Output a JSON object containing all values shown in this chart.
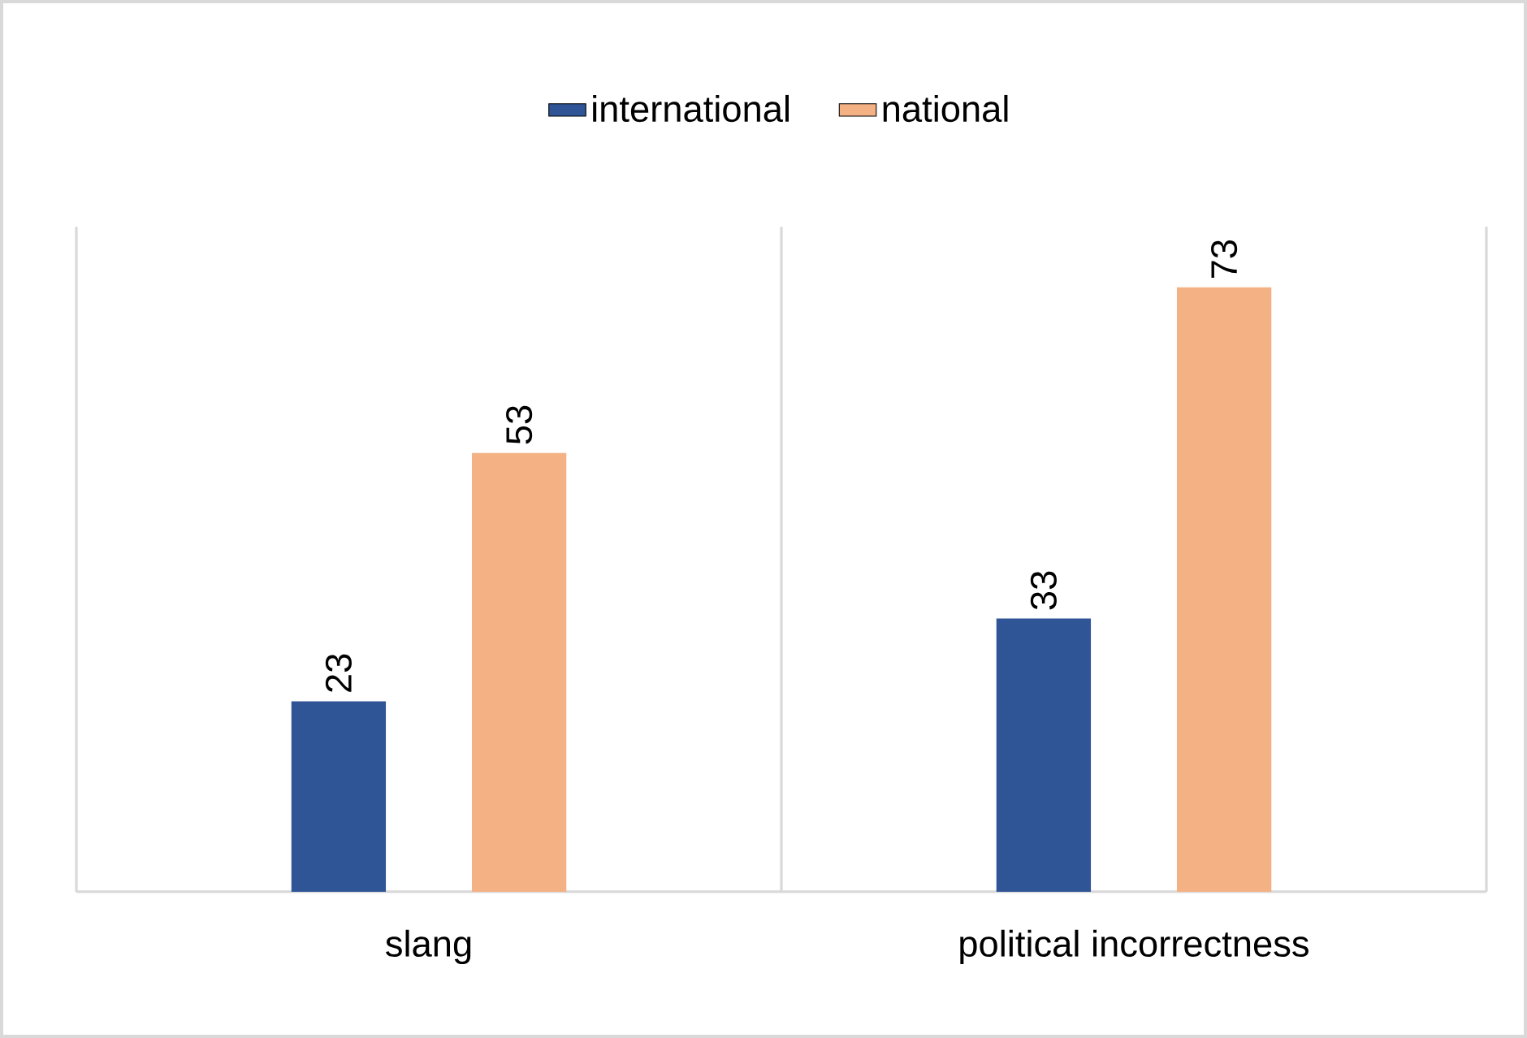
{
  "chart_data": {
    "type": "bar",
    "categories": [
      "slang",
      "political incorrectness"
    ],
    "series": [
      {
        "name": "international",
        "color": "#2f5597",
        "values": [
          23,
          33
        ]
      },
      {
        "name": "national",
        "color": "#f4b183",
        "values": [
          53,
          73
        ]
      }
    ],
    "tick_labels": "x",
    "data_labels": true,
    "grid": "x",
    "legend": "top"
  }
}
